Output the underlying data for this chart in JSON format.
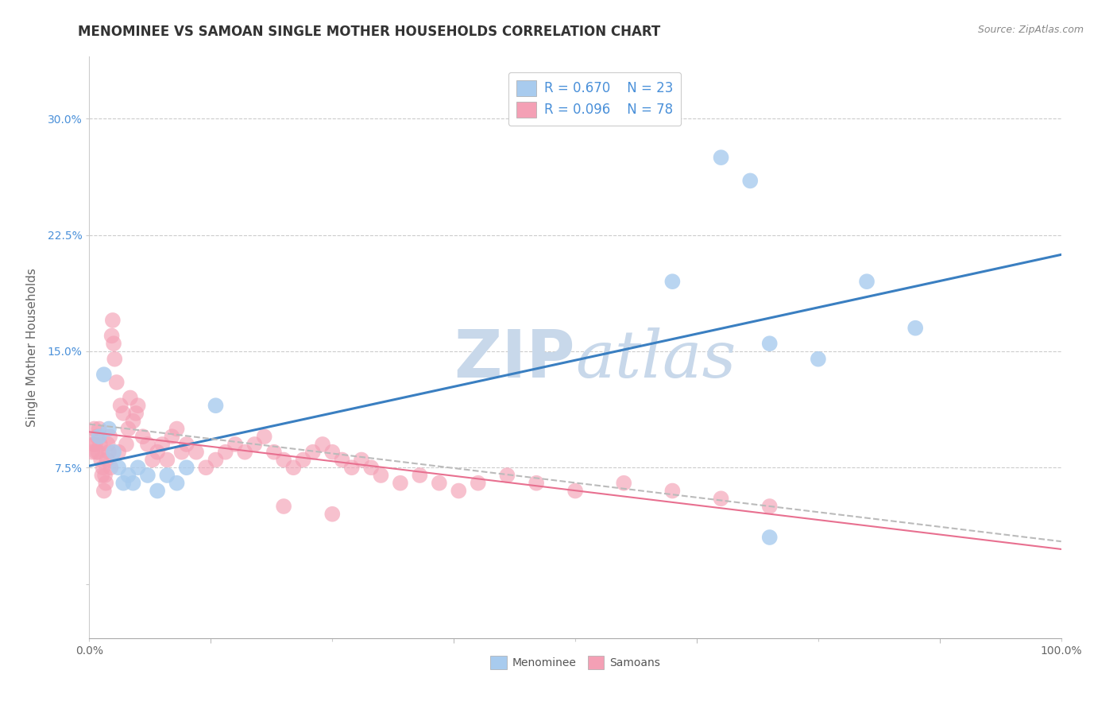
{
  "title": "MENOMINEE VS SAMOAN SINGLE MOTHER HOUSEHOLDS CORRELATION CHART",
  "source": "Source: ZipAtlas.com",
  "ylabel": "Single Mother Households",
  "xlim": [
    0,
    1.0
  ],
  "ylim": [
    -0.035,
    0.34
  ],
  "menominee_color": "#A8CBEE",
  "samoan_color": "#F4A0B5",
  "menominee_line_color": "#3A7FC1",
  "samoan_line_color": "#E87090",
  "samoan_dash_color": "#CCAAAA",
  "grid_color": "#CCCCCC",
  "watermark_color": "#C8D8EA",
  "legend_R1": "R = 0.670",
  "legend_N1": "N = 23",
  "legend_R2": "R = 0.096",
  "legend_N2": "N = 78",
  "menominee_x": [
    0.01,
    0.015,
    0.02,
    0.025,
    0.03,
    0.035,
    0.04,
    0.045,
    0.05,
    0.06,
    0.07,
    0.08,
    0.09,
    0.1,
    0.13,
    0.6,
    0.65,
    0.68,
    0.7,
    0.75,
    0.8,
    0.85,
    0.7
  ],
  "menominee_y": [
    0.095,
    0.135,
    0.1,
    0.085,
    0.075,
    0.065,
    0.07,
    0.065,
    0.075,
    0.07,
    0.06,
    0.07,
    0.065,
    0.075,
    0.115,
    0.195,
    0.275,
    0.26,
    0.155,
    0.145,
    0.195,
    0.165,
    0.03
  ],
  "samoan_x": [
    0.003,
    0.004,
    0.005,
    0.006,
    0.007,
    0.008,
    0.009,
    0.01,
    0.011,
    0.012,
    0.013,
    0.014,
    0.015,
    0.016,
    0.017,
    0.018,
    0.019,
    0.02,
    0.021,
    0.022,
    0.023,
    0.024,
    0.025,
    0.026,
    0.028,
    0.03,
    0.032,
    0.035,
    0.038,
    0.04,
    0.042,
    0.045,
    0.048,
    0.05,
    0.055,
    0.06,
    0.065,
    0.07,
    0.075,
    0.08,
    0.085,
    0.09,
    0.095,
    0.1,
    0.11,
    0.12,
    0.13,
    0.14,
    0.15,
    0.16,
    0.17,
    0.18,
    0.19,
    0.2,
    0.21,
    0.22,
    0.23,
    0.24,
    0.25,
    0.26,
    0.27,
    0.28,
    0.29,
    0.3,
    0.32,
    0.34,
    0.36,
    0.38,
    0.4,
    0.43,
    0.46,
    0.5,
    0.55,
    0.6,
    0.65,
    0.7,
    0.2,
    0.25
  ],
  "samoan_y": [
    0.085,
    0.09,
    0.1,
    0.09,
    0.085,
    0.095,
    0.085,
    0.1,
    0.09,
    0.08,
    0.07,
    0.075,
    0.06,
    0.07,
    0.065,
    0.08,
    0.09,
    0.085,
    0.095,
    0.075,
    0.16,
    0.17,
    0.155,
    0.145,
    0.13,
    0.085,
    0.115,
    0.11,
    0.09,
    0.1,
    0.12,
    0.105,
    0.11,
    0.115,
    0.095,
    0.09,
    0.08,
    0.085,
    0.09,
    0.08,
    0.095,
    0.1,
    0.085,
    0.09,
    0.085,
    0.075,
    0.08,
    0.085,
    0.09,
    0.085,
    0.09,
    0.095,
    0.085,
    0.08,
    0.075,
    0.08,
    0.085,
    0.09,
    0.085,
    0.08,
    0.075,
    0.08,
    0.075,
    0.07,
    0.065,
    0.07,
    0.065,
    0.06,
    0.065,
    0.07,
    0.065,
    0.06,
    0.065,
    0.06,
    0.055,
    0.05,
    0.05,
    0.045
  ],
  "background_color": "#FFFFFF",
  "title_fontsize": 12,
  "axis_fontsize": 11,
  "tick_color_y": "#4A90D9",
  "tick_color_x": "#666666",
  "tick_fontsize": 10
}
